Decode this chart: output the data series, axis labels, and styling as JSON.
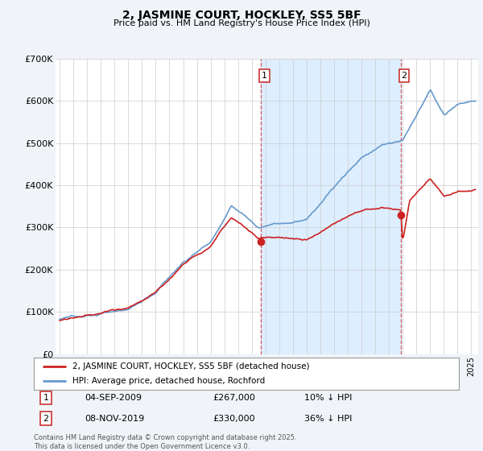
{
  "title": "2, JASMINE COURT, HOCKLEY, SS5 5BF",
  "subtitle": "Price paid vs. HM Land Registry's House Price Index (HPI)",
  "background_color": "#f0f4f8",
  "plot_background": "#ffffff",
  "grid_color": "#cccccc",
  "hpi_color": "#6699cc",
  "price_color": "#cc2222",
  "shade_color": "#ddeeff",
  "ylim": [
    0,
    700000
  ],
  "yticks": [
    0,
    100000,
    200000,
    300000,
    400000,
    500000,
    600000,
    700000
  ],
  "xlim_start": 1994.7,
  "xlim_end": 2025.5,
  "sale1_x": 2009.67,
  "sale1_y": 267000,
  "sale1_label": "1",
  "sale1_date": "04-SEP-2009",
  "sale1_price": "£267,000",
  "sale1_hpi_diff": "10% ↓ HPI",
  "sale2_x": 2019.85,
  "sale2_y": 330000,
  "sale2_label": "2",
  "sale2_date": "08-NOV-2019",
  "sale2_price": "£330,000",
  "sale2_hpi_diff": "36% ↓ HPI",
  "legend_label_price": "2, JASMINE COURT, HOCKLEY, SS5 5BF (detached house)",
  "legend_label_hpi": "HPI: Average price, detached house, Rochford",
  "footer": "Contains HM Land Registry data © Crown copyright and database right 2025.\nThis data is licensed under the Open Government Licence v3.0."
}
